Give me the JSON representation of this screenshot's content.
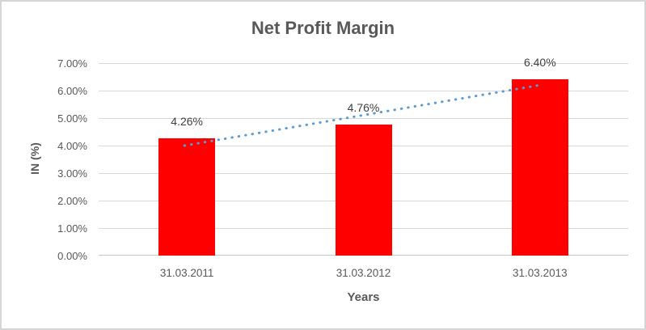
{
  "chart_data": {
    "type": "bar",
    "title": "Net Profit Margin",
    "xlabel": "Years",
    "ylabel": "IN (%)",
    "categories": [
      "31.03.2011",
      "31.03.2012",
      "31.03.2013"
    ],
    "values": [
      4.26,
      4.76,
      6.4
    ],
    "data_labels": [
      "4.26%",
      "4.76%",
      "6.40%"
    ],
    "ylim": [
      0,
      7
    ],
    "ytick_step": 1,
    "ytick_labels": [
      "0.00%",
      "1.00%",
      "2.00%",
      "3.00%",
      "4.00%",
      "5.00%",
      "6.00%",
      "7.00%"
    ],
    "grid": true,
    "legend": "none",
    "bar_color": "#FF0000",
    "trendline": {
      "style": "dotted",
      "color": "#5B9BD5",
      "start": {
        "x_index": 0,
        "value": 4.0
      },
      "end": {
        "x_index": 2,
        "value": 6.2
      }
    },
    "colors": {
      "background": "#FFFFFF",
      "frame_border": "#D6D6D6",
      "title_text": "#595959",
      "axis_text": "#595959",
      "data_label_text": "#404040",
      "gridline": "#D9D9D9",
      "axis_line": "#C6C6C6"
    }
  }
}
